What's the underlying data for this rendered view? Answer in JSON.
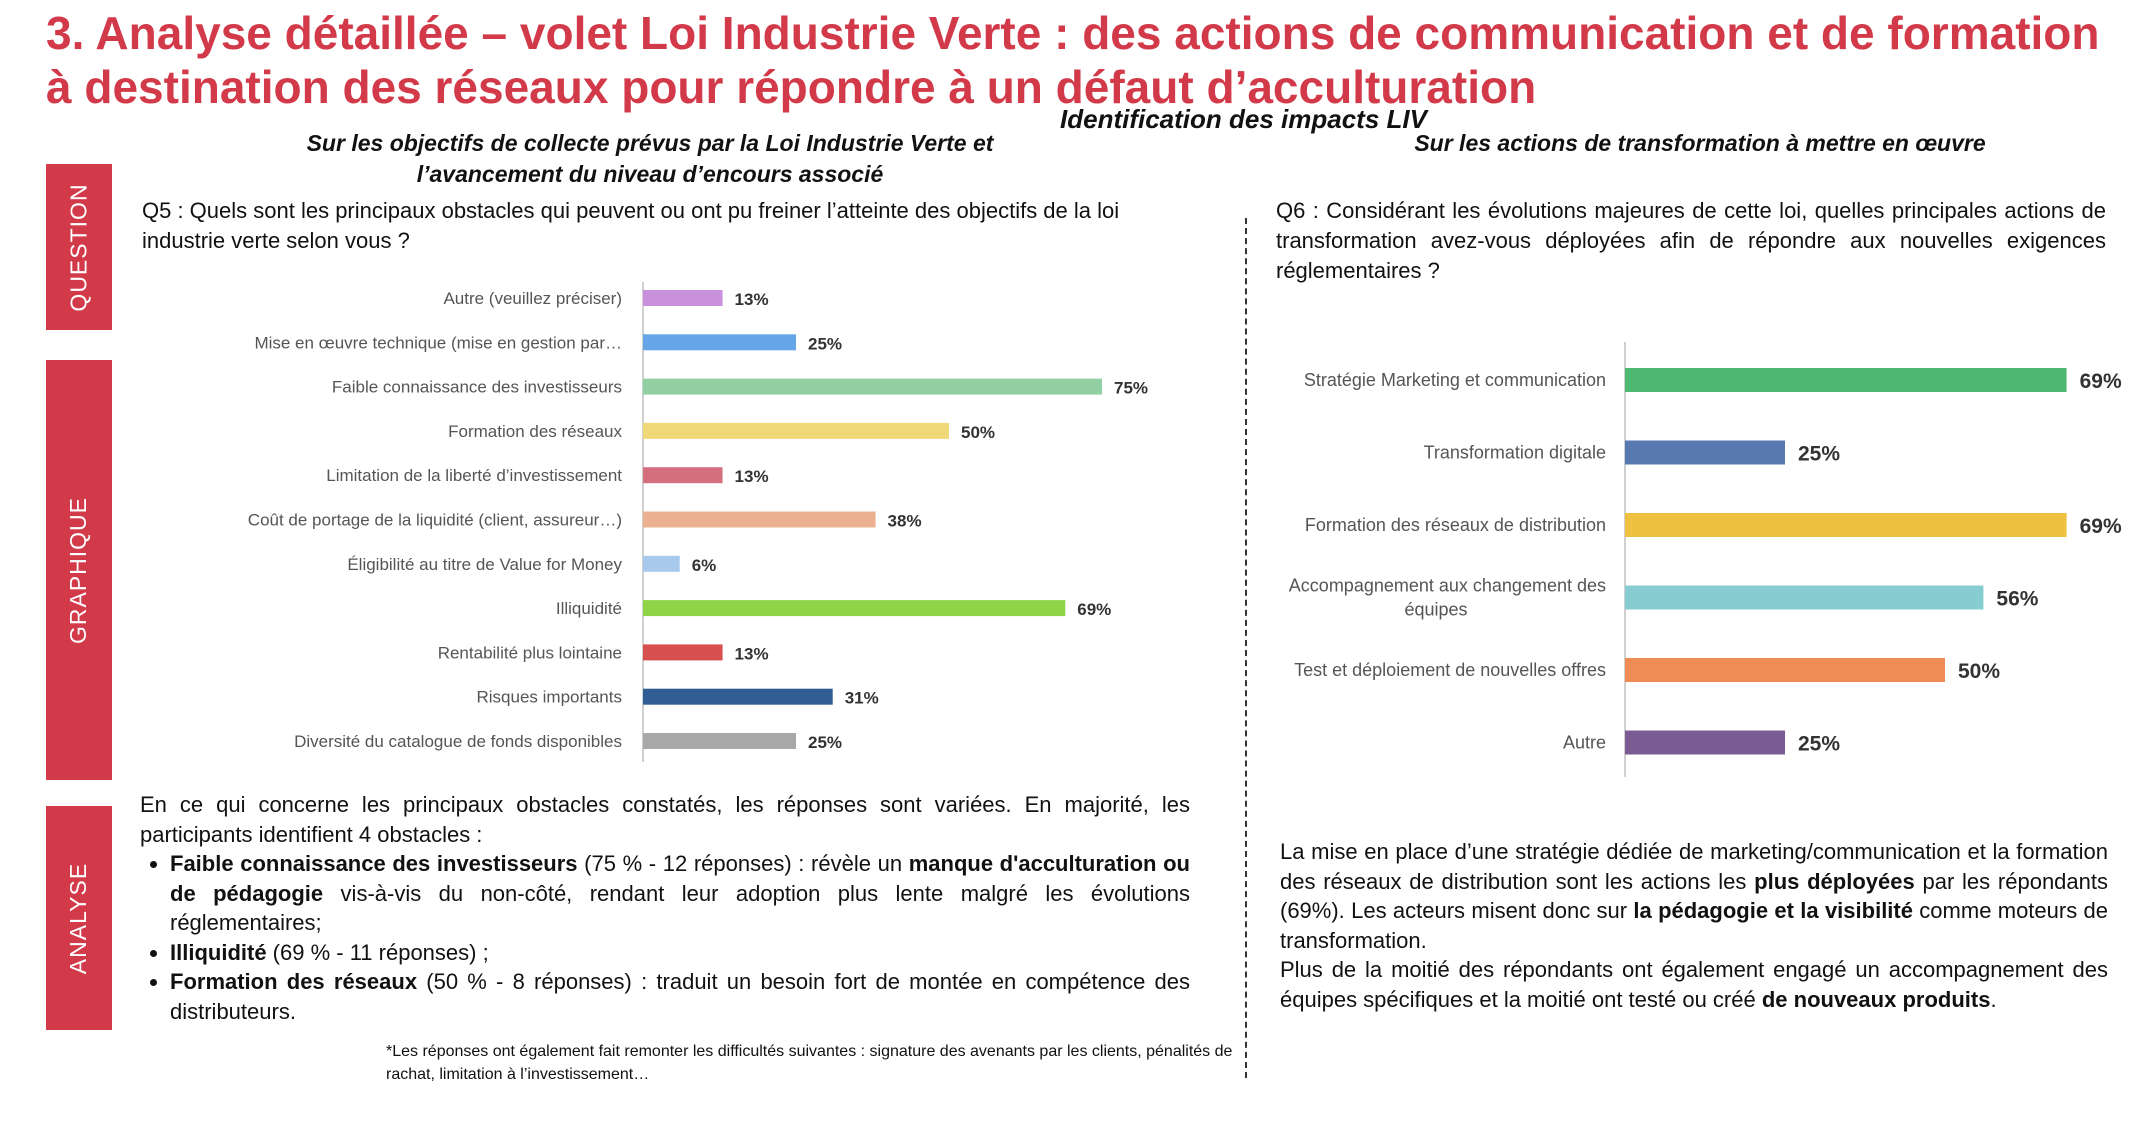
{
  "header": {
    "title": "3. Analyse détaillée – volet Loi Industrie Verte : des actions de communication et de formation à destination des réseaux pour répondre à un défaut d’acculturation",
    "supertitle": "Identification des impacts LIV",
    "left_subhead_line1": "Sur les objectifs de collecte prévus par la Loi Industrie Verte et",
    "left_subhead_line2": "l’avancement du niveau d’encours associé",
    "right_subhead": "Sur les actions de transformation à mettre en œuvre"
  },
  "sidebar": {
    "question": "QUESTION",
    "graphique": "GRAPHIQUE",
    "analyse": "ANALYSE"
  },
  "questions": {
    "q5": "Q5 : Quels sont les principaux obstacles qui peuvent ou ont pu freiner l’atteinte des objectifs de la loi industrie verte selon vous ?",
    "q6": "Q6 : Considérant les évolutions majeures de cette loi, quelles principales actions de transformation avez-vous déployées afin de répondre aux nouvelles exigences réglementaires ?"
  },
  "chart_data": [
    {
      "type": "bar",
      "orientation": "horizontal",
      "categories": [
        "Autre (veuillez préciser)",
        "Mise en œuvre technique (mise en gestion par…",
        "Faible connaissance des investisseurs",
        "Formation des réseaux",
        "Limitation de la liberté d’investissement",
        "Coût de portage de la liquidité (client, assureur…)",
        "Éligibilité au titre de Value for Money",
        "Illiquidité",
        "Rentabilité plus lointaine",
        "Risques importants",
        "Diversité du catalogue de fonds disponibles"
      ],
      "values": [
        13,
        25,
        75,
        50,
        13,
        38,
        6,
        69,
        13,
        31,
        25
      ],
      "labels": [
        "13%",
        "25%",
        "75%",
        "50%",
        "13%",
        "38%",
        "6%",
        "69%",
        "13%",
        "31%",
        "25%"
      ],
      "colors": [
        "#c990dc",
        "#66a6e8",
        "#92d0a4",
        "#f0d878",
        "#d4707e",
        "#eab090",
        "#a8c8ec",
        "#8ed446",
        "#d84f4f",
        "#305e94",
        "#a8a8a8"
      ],
      "xlim": [
        0,
        100
      ],
      "grid": false
    },
    {
      "type": "bar",
      "orientation": "horizontal",
      "categories": [
        [
          "Stratégie Marketing et communication"
        ],
        [
          "Transformation digitale"
        ],
        [
          "Formation des réseaux de distribution"
        ],
        [
          "Accompagnement aux changement des",
          "équipes"
        ],
        [
          "Test et déploiement de nouvelles offres"
        ],
        [
          "Autre"
        ]
      ],
      "values": [
        69,
        25,
        69,
        56,
        50,
        25
      ],
      "labels": [
        "69%",
        "25%",
        "69%",
        "56%",
        "50%",
        "25%"
      ],
      "colors": [
        "#4fb872",
        "#5878b0",
        "#f0c040",
        "#86ccd0",
        "#ef8c56",
        "#7a5c92"
      ],
      "xlim": [
        0,
        100
      ],
      "grid": false
    }
  ],
  "analysis_left": {
    "intro": "En ce qui concerne les principaux obstacles constatés, les réponses sont variées. En majorité, les participants identifient 4 obstacles :",
    "b1_bold": "Faible connaissance des investisseurs",
    "b1_text": " (75 % - 12 réponses) : révèle un ",
    "b1_bold2": "manque d'acculturation ou de pédagogie",
    "b1_text2": " vis-à-vis du non-côté, rendant leur adoption plus lente malgré les évolutions réglementaires;",
    "b2_bold": "Illiquidité",
    "b2_text": " (69 % - 11 réponses) ;",
    "b3_bold": "Formation des réseaux",
    "b3_text": " (50 % - 8 réponses) : traduit un besoin fort de montée en compétence des distributeurs.",
    "footnote": "*Les réponses ont également fait remonter les difficultés suivantes : signature des avenants par les clients, pénalités de rachat, limitation à l’investissement…"
  },
  "analysis_right": {
    "p1_a": "La mise en place d’une stratégie dédiée de marketing/communication et la formation des réseaux de distribution sont les actions les ",
    "p1_b": "plus déployées",
    "p1_c": " par les répondants (69%). Les acteurs misent donc sur ",
    "p1_d": "la pédagogie et la visibilité",
    "p1_e": " comme moteurs de transformation.",
    "p2_a": "Plus de la moitié des répondants ont également engagé un accompagnement des équipes spécifiques et la moitié ont testé ou créé ",
    "p2_b": "de nouveaux produits",
    "p2_c": "."
  }
}
